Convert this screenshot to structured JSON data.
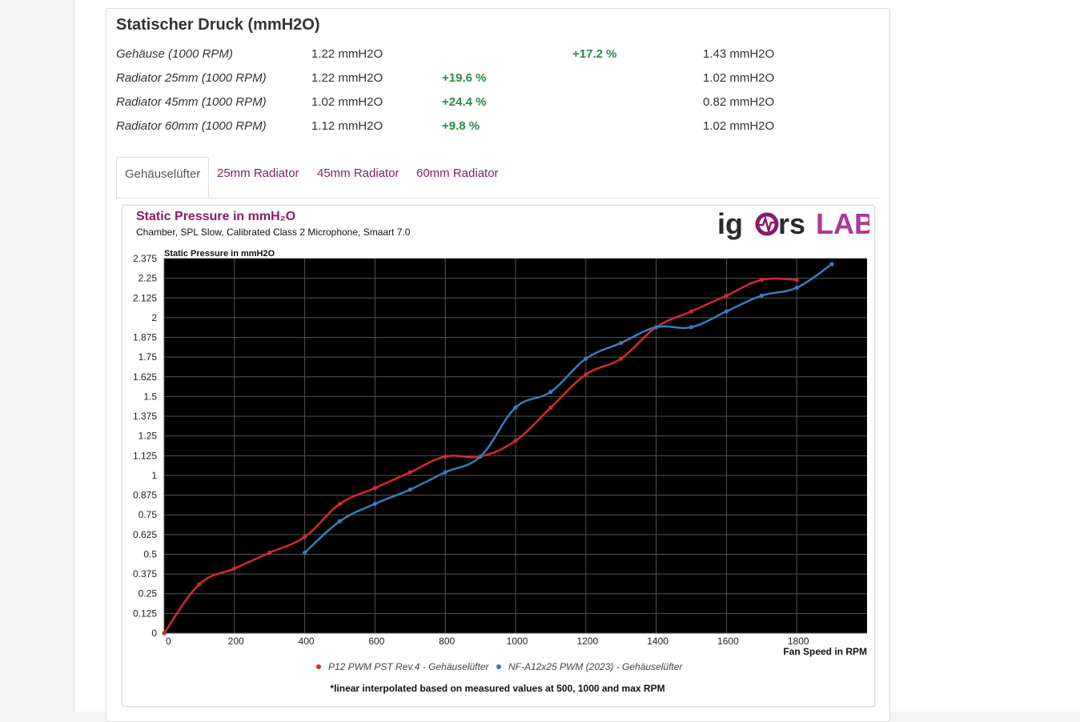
{
  "section": {
    "title": "Statischer Druck (mmH2O)",
    "rows": [
      {
        "label": "Gehäuse (1000 RPM)",
        "value1": "1.22 mmH2O",
        "percent": "+17.2 %",
        "value2": "1.43 mmH2O"
      },
      {
        "label": "Radiator 25mm (1000 RPM)",
        "value1": "1.22 mmH2O",
        "percent": "+19.6 %",
        "value2": "1.02 mmH2O"
      },
      {
        "label": "Radiator 45mm (1000 RPM)",
        "value1": "1.02 mmH2O",
        "percent": "+24.4 %",
        "value2": "0.82 mmH2O"
      },
      {
        "label": "Radiator 60mm (1000 RPM)",
        "value1": "1.12 mmH2O",
        "percent": "+9.8 %",
        "value2": "1.02 mmH2O"
      }
    ]
  },
  "tabs": [
    {
      "label": "Gehäuselüfter",
      "active": true
    },
    {
      "label": "25mm Radiator",
      "active": false
    },
    {
      "label": "45mm Radiator",
      "active": false
    },
    {
      "label": "60mm Radiator",
      "active": false
    }
  ],
  "logo": {
    "left": "ig",
    "middle": "rs",
    "right": "LAB"
  },
  "chart_data": {
    "type": "line",
    "title": "Static Pressure in mmH₂O",
    "subtitle": "Chamber, SPL Slow, Calibrated Class 2 Microphone, Smaart 7.0",
    "ylabel": "Static Pressure in mmH2O",
    "xlabel": "Fan Speed in RPM",
    "xlim": [
      0,
      2000
    ],
    "ylim": [
      0,
      2.375
    ],
    "xticks": [
      "0",
      "200",
      "400",
      "600",
      "800",
      "1000",
      "1200",
      "1400",
      "1600",
      "1800"
    ],
    "yticks": [
      "0",
      "0.125",
      "0.25",
      "0.375",
      "0.5",
      "0.625",
      "0.75",
      "0.875",
      "1",
      "1.125",
      "1.25",
      "1.375",
      "1.5",
      "1.625",
      "1.75",
      "1.875",
      "2",
      "2.125",
      "2.25",
      "2.375"
    ],
    "grid": true,
    "legend_position": "bottom",
    "background": "#000000",
    "note": "*linear interpolated based on measured values at 500, 1000 and max RPM",
    "series": [
      {
        "name": "P12 PWM PST Rev.4 - Gehäuselüfter",
        "color": "#d42a2a",
        "points": [
          [
            0,
            0
          ],
          [
            100,
            0.31
          ],
          [
            200,
            0.41
          ],
          [
            300,
            0.51
          ],
          [
            400,
            0.61
          ],
          [
            500,
            0.82
          ],
          [
            600,
            0.92
          ],
          [
            700,
            1.02
          ],
          [
            800,
            1.12
          ],
          [
            900,
            1.12
          ],
          [
            1000,
            1.22
          ],
          [
            1100,
            1.43
          ],
          [
            1200,
            1.64
          ],
          [
            1300,
            1.74
          ],
          [
            1400,
            1.94
          ],
          [
            1500,
            2.04
          ],
          [
            1600,
            2.14
          ],
          [
            1700,
            2.24
          ],
          [
            1800,
            2.24
          ]
        ]
      },
      {
        "name": "NF-A12x25 PWM (2023) - Gehäuselüfter",
        "color": "#3a7cc0",
        "points": [
          [
            400,
            0.51
          ],
          [
            500,
            0.71
          ],
          [
            600,
            0.82
          ],
          [
            700,
            0.91
          ],
          [
            800,
            1.02
          ],
          [
            900,
            1.12
          ],
          [
            1000,
            1.43
          ],
          [
            1100,
            1.53
          ],
          [
            1200,
            1.74
          ],
          [
            1300,
            1.84
          ],
          [
            1400,
            1.94
          ],
          [
            1500,
            1.94
          ],
          [
            1600,
            2.04
          ],
          [
            1700,
            2.14
          ],
          [
            1800,
            2.19
          ],
          [
            1900,
            2.34
          ]
        ]
      }
    ]
  }
}
